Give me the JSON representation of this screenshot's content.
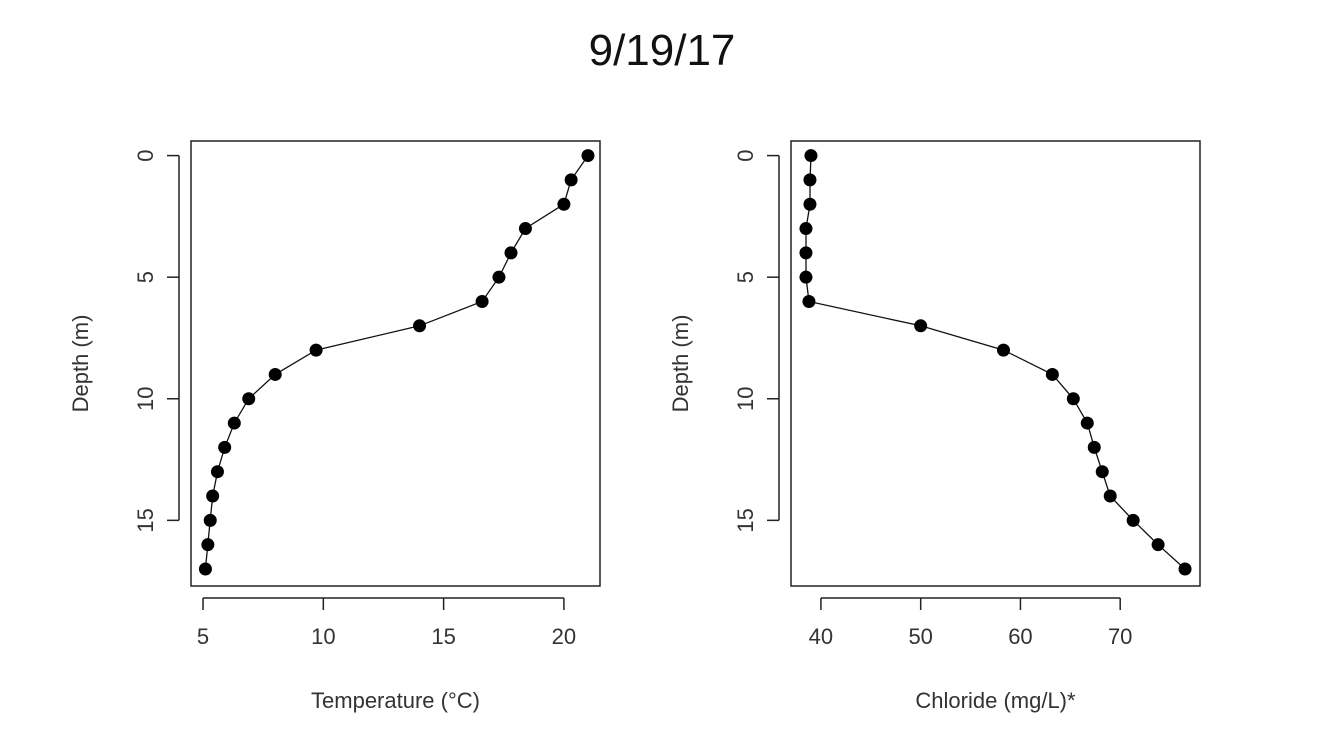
{
  "title": "9/19/17",
  "chart_data": [
    {
      "type": "line",
      "xlabel": "Temperature (°C)",
      "ylabel": "Depth (m)",
      "xlim": [
        4.5,
        21.5
      ],
      "ylim": [
        17.7,
        -0.6
      ],
      "y_reversed": true,
      "xticks": [
        5,
        10,
        15,
        20
      ],
      "yticks": [
        0,
        5,
        10,
        15
      ],
      "grid": false,
      "x": [
        21.0,
        20.3,
        20.0,
        18.4,
        17.8,
        17.3,
        16.6,
        14.0,
        9.7,
        8.0,
        6.9,
        6.3,
        5.9,
        5.6,
        5.4,
        5.3,
        5.2,
        5.1
      ],
      "y": [
        0,
        1,
        2,
        3,
        4,
        5,
        6,
        7,
        8,
        9,
        10,
        11,
        12,
        13,
        14,
        15,
        16,
        17
      ]
    },
    {
      "type": "line",
      "xlabel": "Chloride (mg/L)*",
      "ylabel": "Depth (m)",
      "xlim": [
        37,
        78
      ],
      "ylim": [
        17.7,
        -0.6
      ],
      "y_reversed": true,
      "xticks": [
        40,
        50,
        60,
        70
      ],
      "yticks": [
        0,
        5,
        10,
        15
      ],
      "grid": false,
      "x": [
        39.0,
        38.9,
        38.9,
        38.5,
        38.5,
        38.5,
        38.8,
        50.0,
        58.3,
        63.2,
        65.3,
        66.7,
        67.4,
        68.2,
        69.0,
        71.3,
        73.8,
        76.5
      ],
      "y": [
        0,
        1,
        2,
        3,
        4,
        5,
        6,
        7,
        8,
        9,
        10,
        11,
        12,
        13,
        14,
        15,
        16,
        17
      ]
    }
  ]
}
